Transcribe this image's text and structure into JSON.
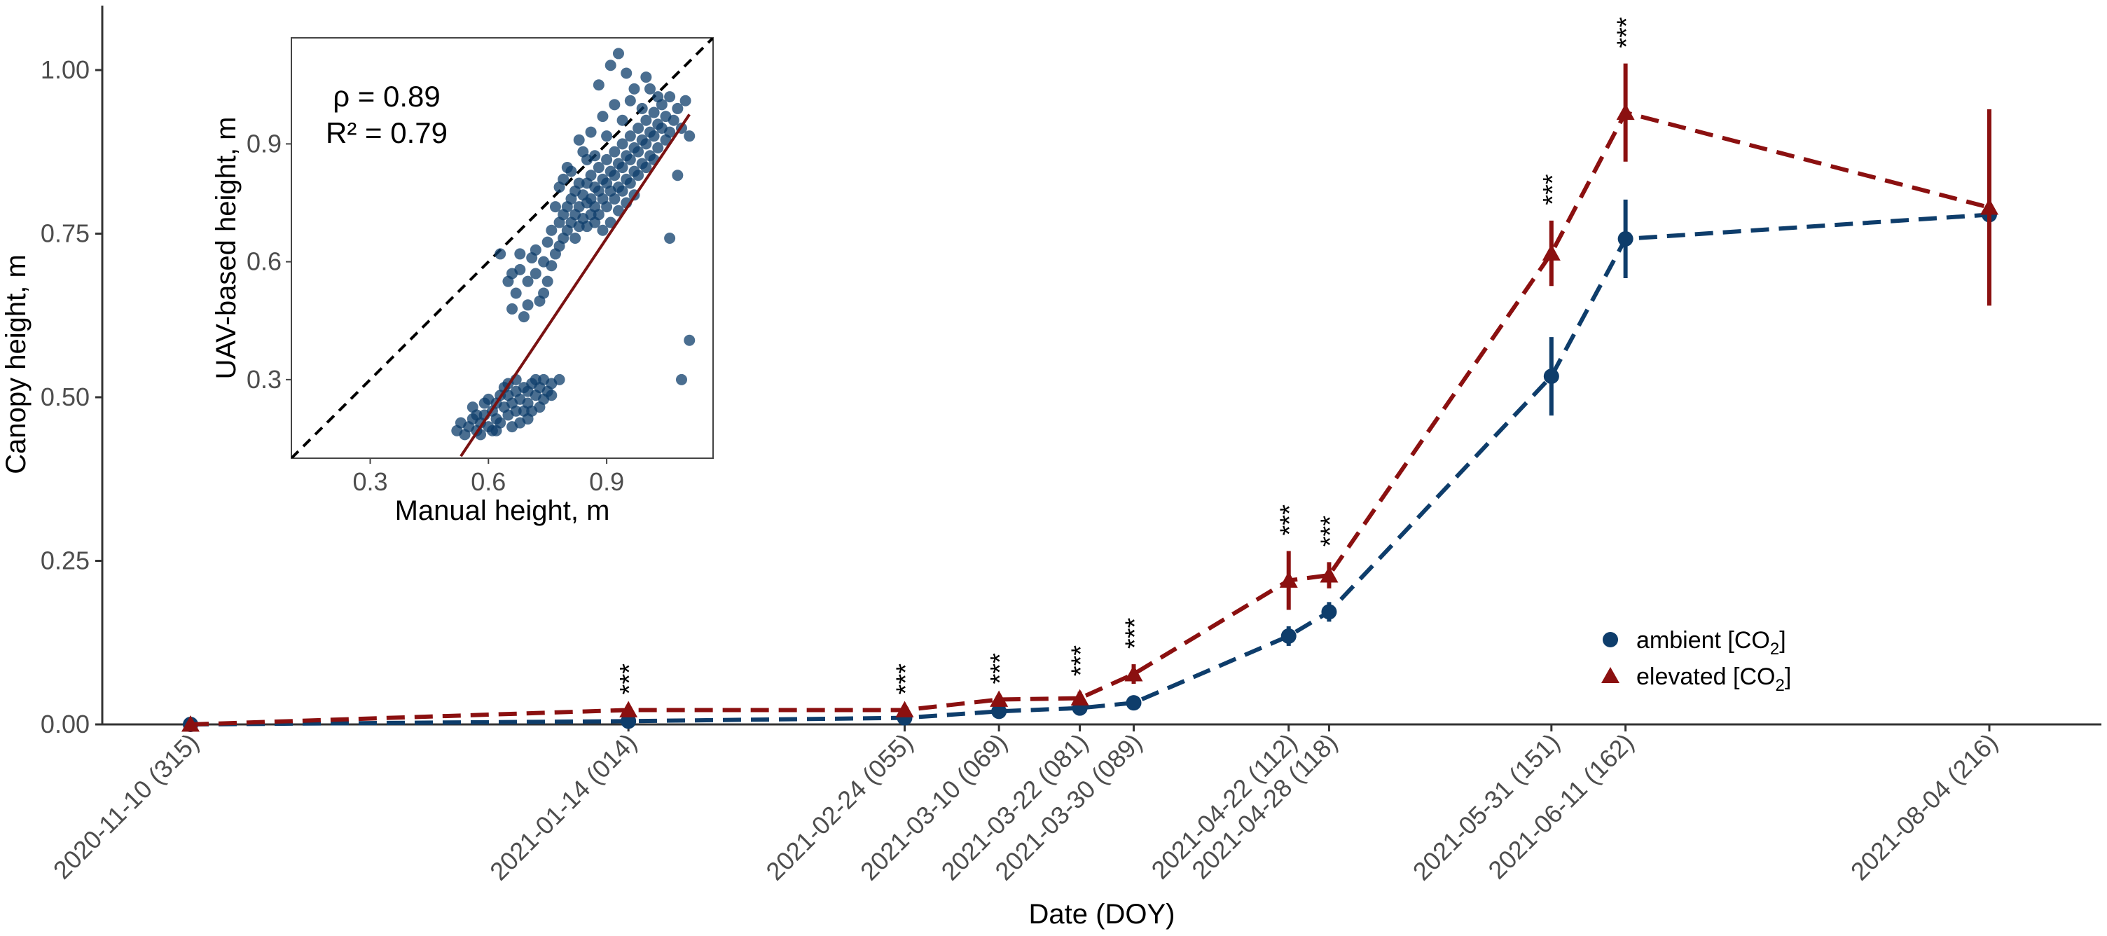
{
  "colors": {
    "ambient": "#0e3d6b",
    "elevated": "#8b1010",
    "regression": "#7a1212",
    "axis": "#333333",
    "ticks": "#4d4d4d"
  },
  "chart_data": [
    {
      "type": "line",
      "title": "",
      "xlabel": "Date (DOY)",
      "ylabel": "Canopy height, m",
      "ylim": [
        0,
        1.1
      ],
      "yticks": [
        "0.00",
        "0.25",
        "0.50",
        "0.75",
        "1.00"
      ],
      "ytick_values": [
        0,
        0.25,
        0.5,
        0.75,
        1.0
      ],
      "x_days": [
        0,
        65,
        106,
        120,
        132,
        140,
        163,
        169,
        202,
        213,
        267
      ],
      "categories": [
        "2020-11-10 (315)",
        "2021-01-14 (014)",
        "2021-02-24 (055)",
        "2021-03-10 (069)",
        "2021-03-22 (081)",
        "2021-03-30 (089)",
        "2021-04-22 (112)",
        "2021-04-28 (118)",
        "2021-05-31 (151)",
        "2021-06-11 (162)",
        "2021-08-04 (216)"
      ],
      "series": [
        {
          "name": "ambient [CO2]",
          "marker": "circle",
          "values": [
            0.0,
            0.005,
            0.01,
            0.02,
            0.025,
            0.033,
            0.135,
            0.172,
            0.532,
            0.742,
            0.779
          ],
          "errors": [
            0,
            0,
            0,
            0,
            0,
            0,
            0.015,
            0.015,
            0.06,
            0.06,
            0
          ]
        },
        {
          "name": "elevated [CO2]",
          "marker": "triangle",
          "values": [
            0.0,
            0.022,
            0.022,
            0.038,
            0.04,
            0.077,
            0.22,
            0.228,
            0.72,
            0.935,
            0.79
          ],
          "errors": [
            0,
            0,
            0,
            0,
            0.01,
            0.015,
            0.045,
            0.02,
            0.05,
            0.075,
            0.15
          ]
        }
      ],
      "significance": [
        "",
        "***",
        "***",
        "***",
        "***",
        "***",
        "***",
        "***",
        "***",
        "***",
        ""
      ],
      "legend": {
        "placement": "bottom-right",
        "items": [
          {
            "label": "ambient [CO",
            "sub": "2",
            "close": "]"
          },
          {
            "label": "elevated [CO",
            "sub": "2",
            "close": "]"
          }
        ]
      }
    },
    {
      "type": "scatter",
      "title": "",
      "xlabel": "Manual height, m",
      "ylabel": "UAV-based height, m",
      "xlim": [
        0.1,
        1.17
      ],
      "ylim": [
        0.1,
        1.17
      ],
      "xticks": [
        "0.3",
        "0.6",
        "0.9"
      ],
      "xtick_values": [
        0.3,
        0.6,
        0.9
      ],
      "yticks": [
        "0.3",
        "0.6",
        "0.9"
      ],
      "ytick_values": [
        0.3,
        0.6,
        0.9
      ],
      "stats": {
        "rho": "ρ = 0.89",
        "r2": "R² = 0.79"
      },
      "regression": {
        "slope": 1.5,
        "intercept": -0.69
      },
      "reference_line": "1:1 dashed",
      "points": [
        [
          0.52,
          0.17
        ],
        [
          0.53,
          0.19
        ],
        [
          0.54,
          0.16
        ],
        [
          0.55,
          0.18
        ],
        [
          0.56,
          0.2
        ],
        [
          0.57,
          0.17
        ],
        [
          0.58,
          0.19
        ],
        [
          0.59,
          0.21
        ],
        [
          0.6,
          0.18
        ],
        [
          0.61,
          0.22
        ],
        [
          0.62,
          0.2
        ],
        [
          0.62,
          0.24
        ],
        [
          0.63,
          0.19
        ],
        [
          0.64,
          0.23
        ],
        [
          0.65,
          0.26
        ],
        [
          0.65,
          0.21
        ],
        [
          0.66,
          0.24
        ],
        [
          0.67,
          0.27
        ],
        [
          0.67,
          0.22
        ],
        [
          0.68,
          0.25
        ],
        [
          0.69,
          0.28
        ],
        [
          0.7,
          0.24
        ],
        [
          0.7,
          0.27
        ],
        [
          0.71,
          0.29
        ],
        [
          0.72,
          0.26
        ],
        [
          0.73,
          0.28
        ],
        [
          0.74,
          0.3
        ],
        [
          0.75,
          0.27
        ],
        [
          0.76,
          0.29
        ],
        [
          0.78,
          0.3
        ],
        [
          0.58,
          0.16
        ],
        [
          0.6,
          0.25
        ],
        [
          0.63,
          0.26
        ],
        [
          0.66,
          0.18
        ],
        [
          0.69,
          0.22
        ],
        [
          0.72,
          0.3
        ],
        [
          0.56,
          0.23
        ],
        [
          0.61,
          0.17
        ],
        [
          0.64,
          0.28
        ],
        [
          0.68,
          0.19
        ],
        [
          0.71,
          0.22
        ],
        [
          0.74,
          0.25
        ],
        [
          0.67,
          0.3
        ],
        [
          0.59,
          0.24
        ],
        [
          0.65,
          0.29
        ],
        [
          0.62,
          0.17
        ],
        [
          0.7,
          0.2
        ],
        [
          0.76,
          0.26
        ],
        [
          0.73,
          0.23
        ],
        [
          0.57,
          0.21
        ],
        [
          0.63,
          0.62
        ],
        [
          0.65,
          0.55
        ],
        [
          0.66,
          0.48
        ],
        [
          0.67,
          0.52
        ],
        [
          0.68,
          0.58
        ],
        [
          0.69,
          0.46
        ],
        [
          0.7,
          0.55
        ],
        [
          0.71,
          0.61
        ],
        [
          0.72,
          0.57
        ],
        [
          0.73,
          0.5
        ],
        [
          0.74,
          0.6
        ],
        [
          0.75,
          0.65
        ],
        [
          0.75,
          0.55
        ],
        [
          0.76,
          0.68
        ],
        [
          0.76,
          0.59
        ],
        [
          0.77,
          0.62
        ],
        [
          0.78,
          0.7
        ],
        [
          0.78,
          0.64
        ],
        [
          0.79,
          0.72
        ],
        [
          0.79,
          0.66
        ],
        [
          0.8,
          0.74
        ],
        [
          0.8,
          0.68
        ],
        [
          0.81,
          0.76
        ],
        [
          0.81,
          0.7
        ],
        [
          0.82,
          0.78
        ],
        [
          0.82,
          0.72
        ],
        [
          0.82,
          0.66
        ],
        [
          0.83,
          0.8
        ],
        [
          0.83,
          0.74
        ],
        [
          0.83,
          0.69
        ],
        [
          0.84,
          0.77
        ],
        [
          0.84,
          0.71
        ],
        [
          0.85,
          0.8
        ],
        [
          0.85,
          0.75
        ],
        [
          0.85,
          0.69
        ],
        [
          0.86,
          0.82
        ],
        [
          0.86,
          0.76
        ],
        [
          0.86,
          0.72
        ],
        [
          0.87,
          0.79
        ],
        [
          0.87,
          0.74
        ],
        [
          0.88,
          0.84
        ],
        [
          0.88,
          0.78
        ],
        [
          0.88,
          0.72
        ],
        [
          0.89,
          0.81
        ],
        [
          0.89,
          0.76
        ],
        [
          0.9,
          0.86
        ],
        [
          0.9,
          0.8
        ],
        [
          0.9,
          0.74
        ],
        [
          0.91,
          0.83
        ],
        [
          0.91,
          0.78
        ],
        [
          0.92,
          0.88
        ],
        [
          0.92,
          0.82
        ],
        [
          0.92,
          0.76
        ],
        [
          0.93,
          0.85
        ],
        [
          0.93,
          0.79
        ],
        [
          0.94,
          0.9
        ],
        [
          0.94,
          0.84
        ],
        [
          0.94,
          0.78
        ],
        [
          0.95,
          0.87
        ],
        [
          0.95,
          0.81
        ],
        [
          0.96,
          0.92
        ],
        [
          0.96,
          0.86
        ],
        [
          0.96,
          0.8
        ],
        [
          0.97,
          0.89
        ],
        [
          0.97,
          0.83
        ],
        [
          0.98,
          0.94
        ],
        [
          0.98,
          0.88
        ],
        [
          0.98,
          0.82
        ],
        [
          0.99,
          0.91
        ],
        [
          0.99,
          0.85
        ],
        [
          1.0,
          0.96
        ],
        [
          1.0,
          0.9
        ],
        [
          1.0,
          0.84
        ],
        [
          1.01,
          0.93
        ],
        [
          1.01,
          0.87
        ],
        [
          1.02,
          0.98
        ],
        [
          1.02,
          0.92
        ],
        [
          1.02,
          0.86
        ],
        [
          1.03,
          0.95
        ],
        [
          1.03,
          0.89
        ],
        [
          1.04,
          1.0
        ],
        [
          1.04,
          0.94
        ],
        [
          1.05,
          0.91
        ],
        [
          1.05,
          0.97
        ],
        [
          1.06,
          0.93
        ],
        [
          1.06,
          1.02
        ],
        [
          1.07,
          0.96
        ],
        [
          1.08,
          0.99
        ],
        [
          1.09,
          0.94
        ],
        [
          1.1,
          1.01
        ],
        [
          0.88,
          1.05
        ],
        [
          0.91,
          1.1
        ],
        [
          0.93,
          1.13
        ],
        [
          0.95,
          1.08
        ],
        [
          0.97,
          1.04
        ],
        [
          1.0,
          1.07
        ],
        [
          0.89,
          0.97
        ],
        [
          0.92,
          1.0
        ],
        [
          0.86,
          0.93
        ],
        [
          0.84,
          0.88
        ],
        [
          0.8,
          0.84
        ],
        [
          0.78,
          0.79
        ],
        [
          0.83,
          0.91
        ],
        [
          0.87,
          0.87
        ],
        [
          0.9,
          0.92
        ],
        [
          0.94,
          0.96
        ],
        [
          0.96,
          1.01
        ],
        [
          0.99,
          0.99
        ],
        [
          1.01,
          1.04
        ],
        [
          1.03,
          1.02
        ],
        [
          0.77,
          0.74
        ],
        [
          0.79,
          0.81
        ],
        [
          0.81,
          0.83
        ],
        [
          0.85,
          0.86
        ],
        [
          0.87,
          0.7
        ],
        [
          0.89,
          0.68
        ],
        [
          0.91,
          0.7
        ],
        [
          0.93,
          0.73
        ],
        [
          0.95,
          0.75
        ],
        [
          0.97,
          0.77
        ],
        [
          1.06,
          0.66
        ],
        [
          1.08,
          0.82
        ],
        [
          1.11,
          0.92
        ],
        [
          1.09,
          0.3
        ],
        [
          1.11,
          0.4
        ],
        [
          0.74,
          0.52
        ],
        [
          0.72,
          0.63
        ],
        [
          0.7,
          0.49
        ],
        [
          0.68,
          0.62
        ],
        [
          0.66,
          0.57
        ]
      ]
    }
  ]
}
